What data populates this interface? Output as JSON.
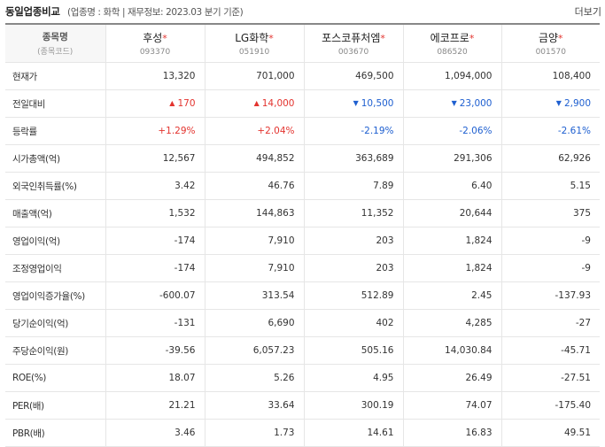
{
  "header": {
    "title": "동일업종비교",
    "subtitle": "(업종명 : 화학 | 재무정보: 2023.03 분기 기준)",
    "more_label": "더보기"
  },
  "table": {
    "header_label": "종목명",
    "header_sublabel": "(종목코드)",
    "star": "*",
    "companies": [
      {
        "name": "후성",
        "code": "093370"
      },
      {
        "name": "LG화학",
        "code": "051910"
      },
      {
        "name": "포스코퓨처엠",
        "code": "003670"
      },
      {
        "name": "에코프로",
        "code": "086520"
      },
      {
        "name": "금양",
        "code": "001570"
      }
    ],
    "rows": [
      {
        "label": "현재가",
        "values": [
          "13,320",
          "701,000",
          "469,500",
          "1,094,000",
          "108,400"
        ]
      },
      {
        "label": "전일대비",
        "type": "change",
        "values": [
          "170",
          "14,000",
          "10,500",
          "23,000",
          "2,900"
        ],
        "directions": [
          "up",
          "up",
          "down",
          "down",
          "down"
        ]
      },
      {
        "label": "등락률",
        "type": "rate",
        "values": [
          "+1.29%",
          "+2.04%",
          "-2.19%",
          "-2.06%",
          "-2.61%"
        ],
        "directions": [
          "up",
          "up",
          "down",
          "down",
          "down"
        ]
      },
      {
        "label": "시가총액(억)",
        "values": [
          "12,567",
          "494,852",
          "363,689",
          "291,306",
          "62,926"
        ]
      },
      {
        "label": "외국인취득률(%)",
        "values": [
          "3.42",
          "46.76",
          "7.89",
          "6.40",
          "5.15"
        ]
      },
      {
        "label": "매출액(억)",
        "values": [
          "1,532",
          "144,863",
          "11,352",
          "20,644",
          "375"
        ]
      },
      {
        "label": "영업이익(억)",
        "values": [
          "-174",
          "7,910",
          "203",
          "1,824",
          "-9"
        ]
      },
      {
        "label": "조정영업이익",
        "values": [
          "-174",
          "7,910",
          "203",
          "1,824",
          "-9"
        ]
      },
      {
        "label": "영업이익증가율(%)",
        "values": [
          "-600.07",
          "313.54",
          "512.89",
          "2.45",
          "-137.93"
        ]
      },
      {
        "label": "당기순이익(억)",
        "values": [
          "-131",
          "6,690",
          "402",
          "4,285",
          "-27"
        ]
      },
      {
        "label": "주당순이익(원)",
        "values": [
          "-39.56",
          "6,057.23",
          "505.16",
          "14,030.84",
          "-45.71"
        ]
      },
      {
        "label": "ROE(%)",
        "values": [
          "18.07",
          "5.26",
          "4.95",
          "26.49",
          "-27.51"
        ]
      },
      {
        "label": "PER(배)",
        "values": [
          "21.21",
          "33.64",
          "300.19",
          "74.07",
          "-175.40"
        ]
      },
      {
        "label": "PBR(배)",
        "values": [
          "3.46",
          "1.73",
          "14.61",
          "16.83",
          "49.51"
        ]
      }
    ]
  },
  "colors": {
    "up": "#e3342f",
    "down": "#1e5fd0",
    "header_bg": "#f7f7f7",
    "border": "#e6e6e6"
  },
  "icons": {
    "up": "triangle-up-icon",
    "down": "triangle-down-icon"
  }
}
